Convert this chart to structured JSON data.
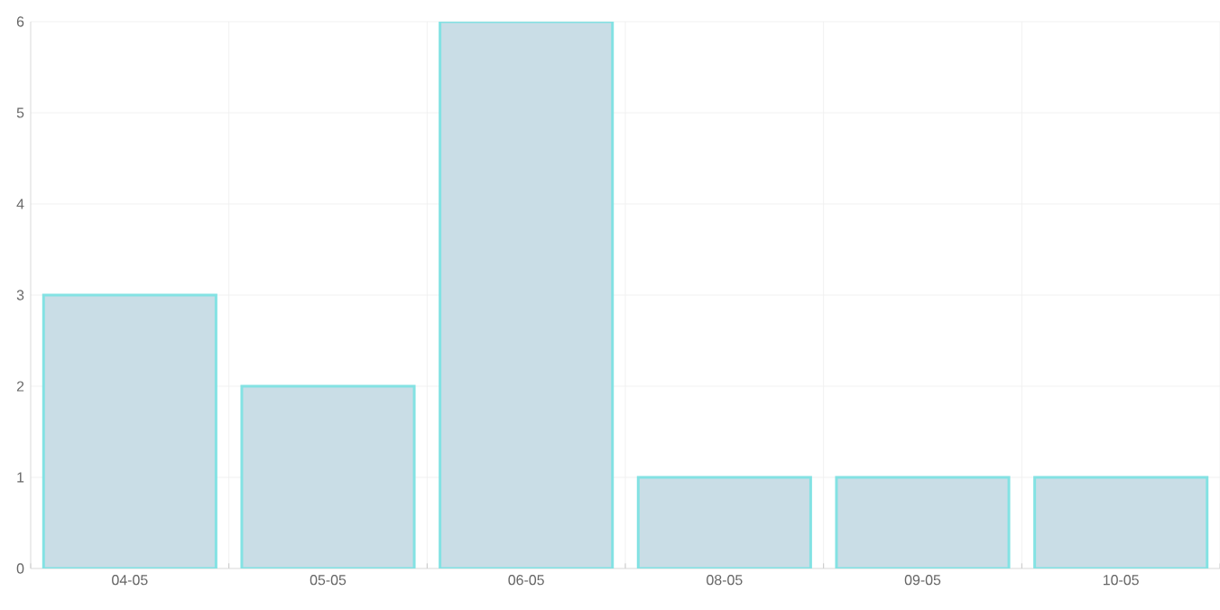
{
  "chart_data": {
    "type": "bar",
    "categories": [
      "04-05",
      "05-05",
      "06-05",
      "08-05",
      "09-05",
      "10-05"
    ],
    "values": [
      3,
      2,
      6,
      1,
      1,
      1
    ],
    "color": "#c9dde6",
    "ylim": [
      0,
      6
    ],
    "yticks": [
      0,
      1,
      2,
      3,
      4,
      5,
      6
    ],
    "grid": true
  }
}
